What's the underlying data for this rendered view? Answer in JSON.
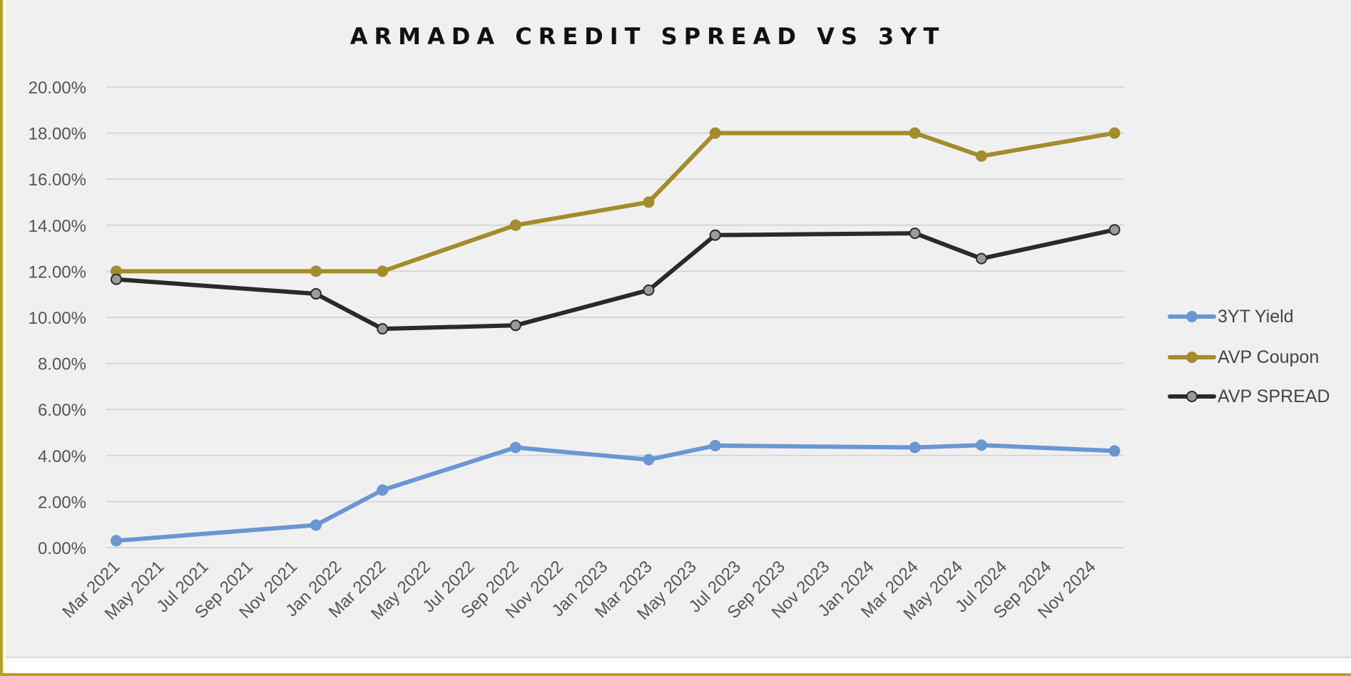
{
  "colors": {
    "3yt_yield": "#6a96d4",
    "avp_coupon": "#a38c2b",
    "avp_spread": "#2a2a2a",
    "avp_spread_marker": "#9b9b9b",
    "grid": "#d6d6d6",
    "background": "#f0f0f0",
    "border": "#b7a21e"
  },
  "chart_data": {
    "type": "line",
    "title": "ARMADA CREDIT SPREAD VS 3YT",
    "xlabel": "",
    "ylabel": "",
    "ylim": [
      0,
      0.2
    ],
    "y_ticks": [
      0,
      0.02,
      0.04,
      0.06,
      0.08,
      0.1,
      0.12,
      0.14,
      0.16,
      0.18,
      0.2
    ],
    "y_tick_labels": [
      "0.00%",
      "2.00%",
      "4.00%",
      "6.00%",
      "8.00%",
      "10.00%",
      "12.00%",
      "14.00%",
      "16.00%",
      "18.00%",
      "20.00%"
    ],
    "x_tick_labels": [
      "Mar 2021",
      "May 2021",
      "Jul 2021",
      "Sep 2021",
      "Nov 2021",
      "Jan 2022",
      "Mar 2022",
      "May 2022",
      "Jul 2022",
      "Sep 2022",
      "Nov 2022",
      "Jan 2023",
      "Mar 2023",
      "May 2023",
      "Jul 2023",
      "Sep 2023",
      "Nov 2023",
      "Jan 2024",
      "Mar 2024",
      "May 2024",
      "Jul 2024",
      "Sep 2024",
      "Nov 2024"
    ],
    "x": [
      "Mar 2021",
      "Dec 2021",
      "Mar 2022",
      "Sep 2022",
      "Mar 2023",
      "Jun 2023",
      "Mar 2024",
      "Jun 2024",
      "Dec 2024"
    ],
    "grid": true,
    "legend_position": "right",
    "series": [
      {
        "name": "3YT Yield",
        "values": [
          0.003,
          0.0098,
          0.025,
          0.0435,
          0.0382,
          0.0443,
          0.0435,
          0.0445,
          0.042
        ]
      },
      {
        "name": "AVP Coupon",
        "values": [
          0.12,
          0.12,
          0.12,
          0.14,
          0.15,
          0.18,
          0.18,
          0.17,
          0.18
        ]
      },
      {
        "name": "AVP SPREAD",
        "values": [
          0.1165,
          0.1102,
          0.095,
          0.0965,
          0.1118,
          0.1357,
          0.1365,
          0.1255,
          0.138
        ]
      }
    ]
  }
}
